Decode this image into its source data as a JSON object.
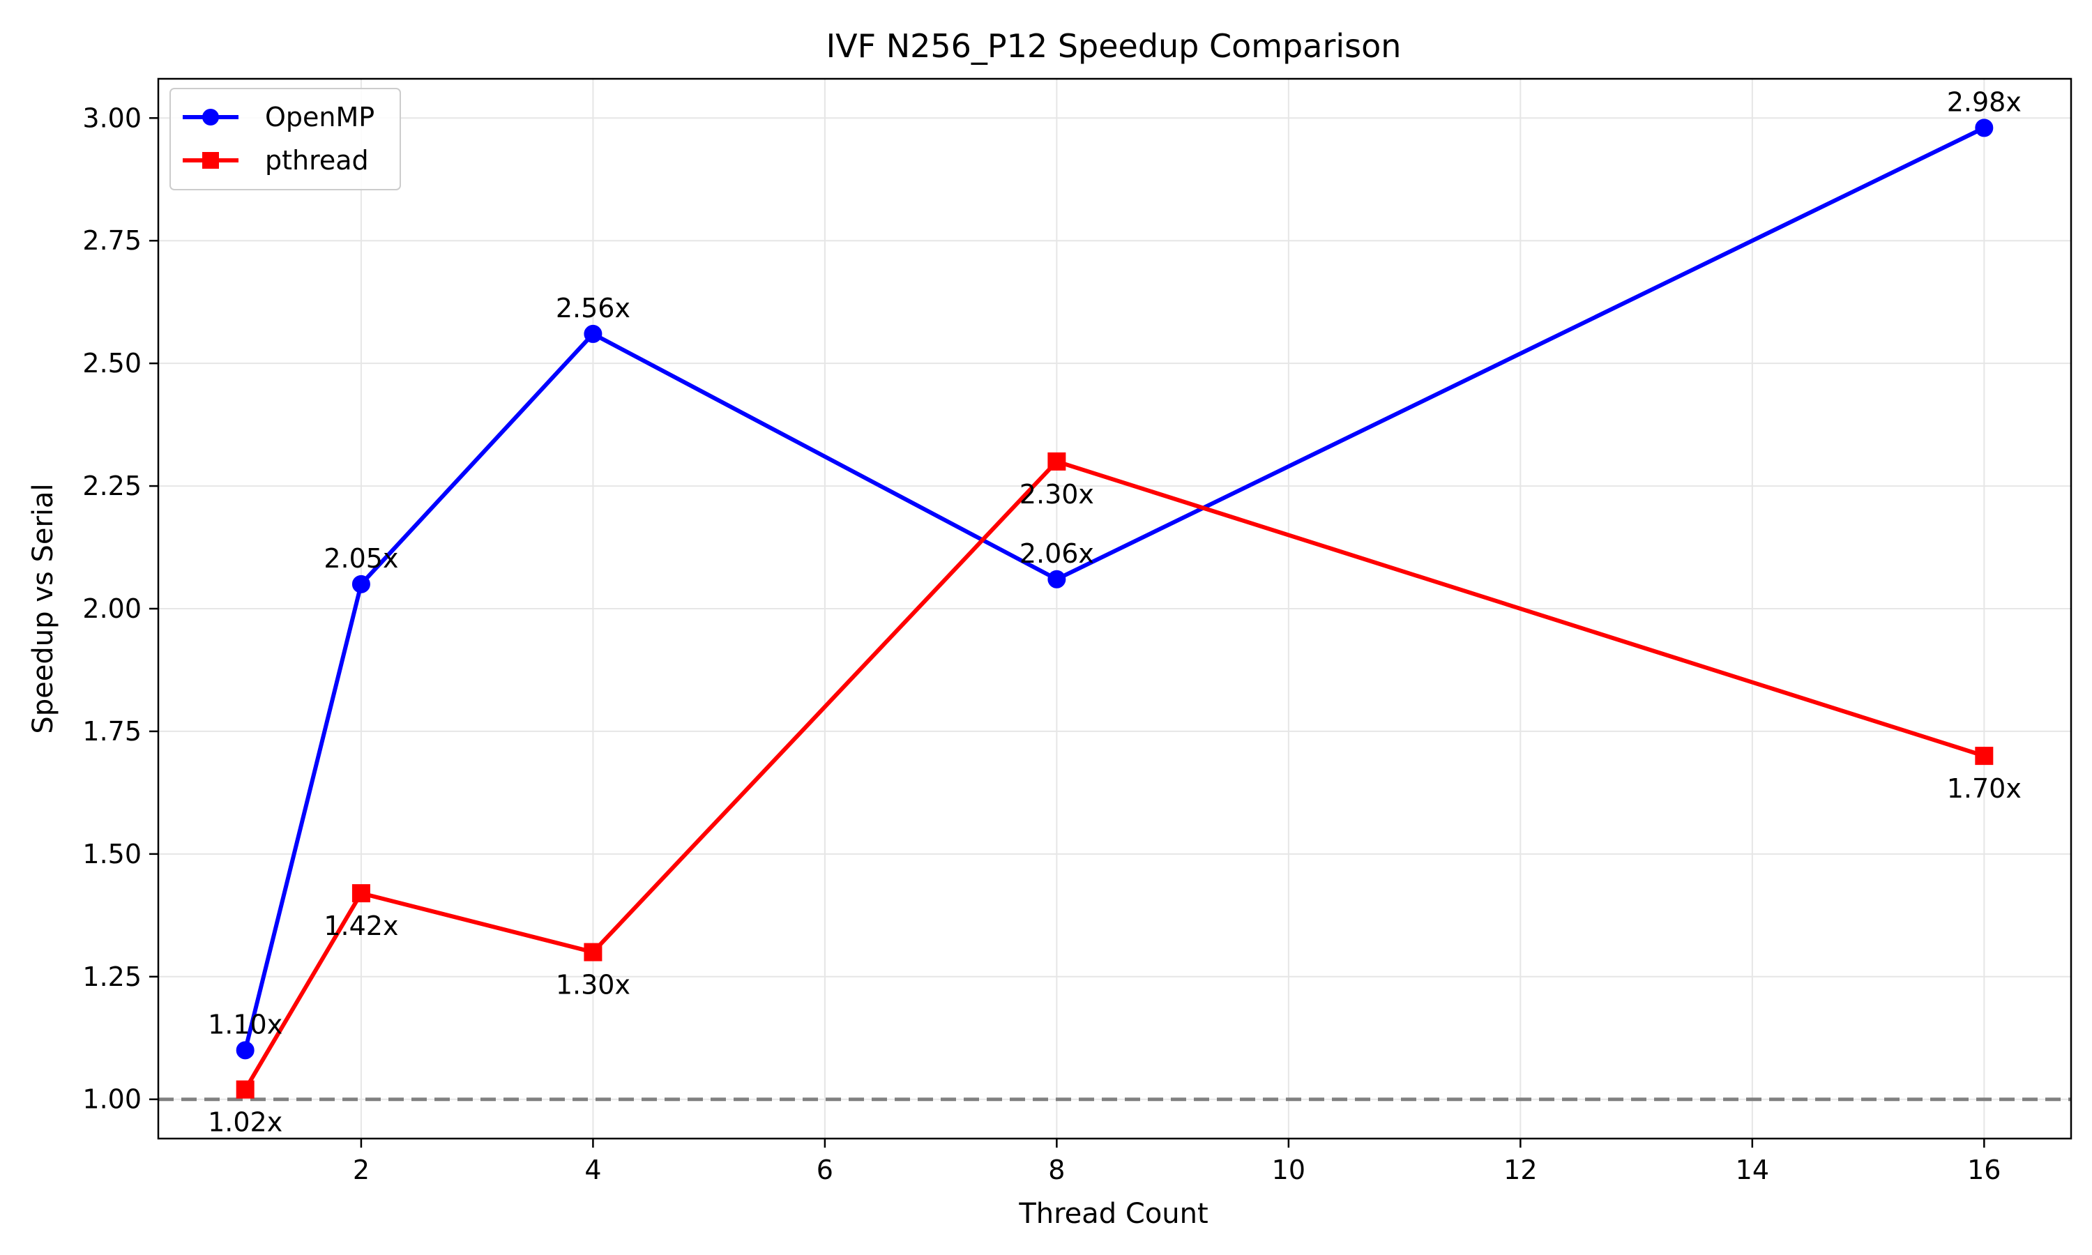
{
  "chart_data": {
    "type": "line",
    "title": "IVF N256_P12 Speedup Comparison",
    "xlabel": "Thread Count",
    "ylabel": "Speedup vs Serial",
    "xlim": [
      0.25,
      16.75
    ],
    "ylim": [
      0.92,
      3.08
    ],
    "xticks": [
      2,
      4,
      6,
      8,
      10,
      12,
      14,
      16
    ],
    "yticks": [
      1.0,
      1.25,
      1.5,
      1.75,
      2.0,
      2.25,
      2.5,
      2.75,
      3.0
    ],
    "grid": true,
    "legend_position": "upper-left",
    "reference_line": {
      "y": 1.0,
      "style": "dashed",
      "color": "#808080"
    },
    "x": [
      1,
      2,
      4,
      8,
      16
    ],
    "series": [
      {
        "name": "OpenMP",
        "color": "#0000ff",
        "marker": "circle",
        "values": [
          1.1,
          2.05,
          2.56,
          2.06,
          2.98
        ],
        "labels": [
          "1.10x",
          "2.05x",
          "2.56x",
          "2.06x",
          "2.98x"
        ],
        "label_position": "above"
      },
      {
        "name": "pthread",
        "color": "#ff0000",
        "marker": "square",
        "values": [
          1.02,
          1.42,
          1.3,
          2.3,
          1.7
        ],
        "labels": [
          "1.02x",
          "1.42x",
          "1.30x",
          "2.30x",
          "1.70x"
        ],
        "label_position": "below"
      }
    ]
  }
}
